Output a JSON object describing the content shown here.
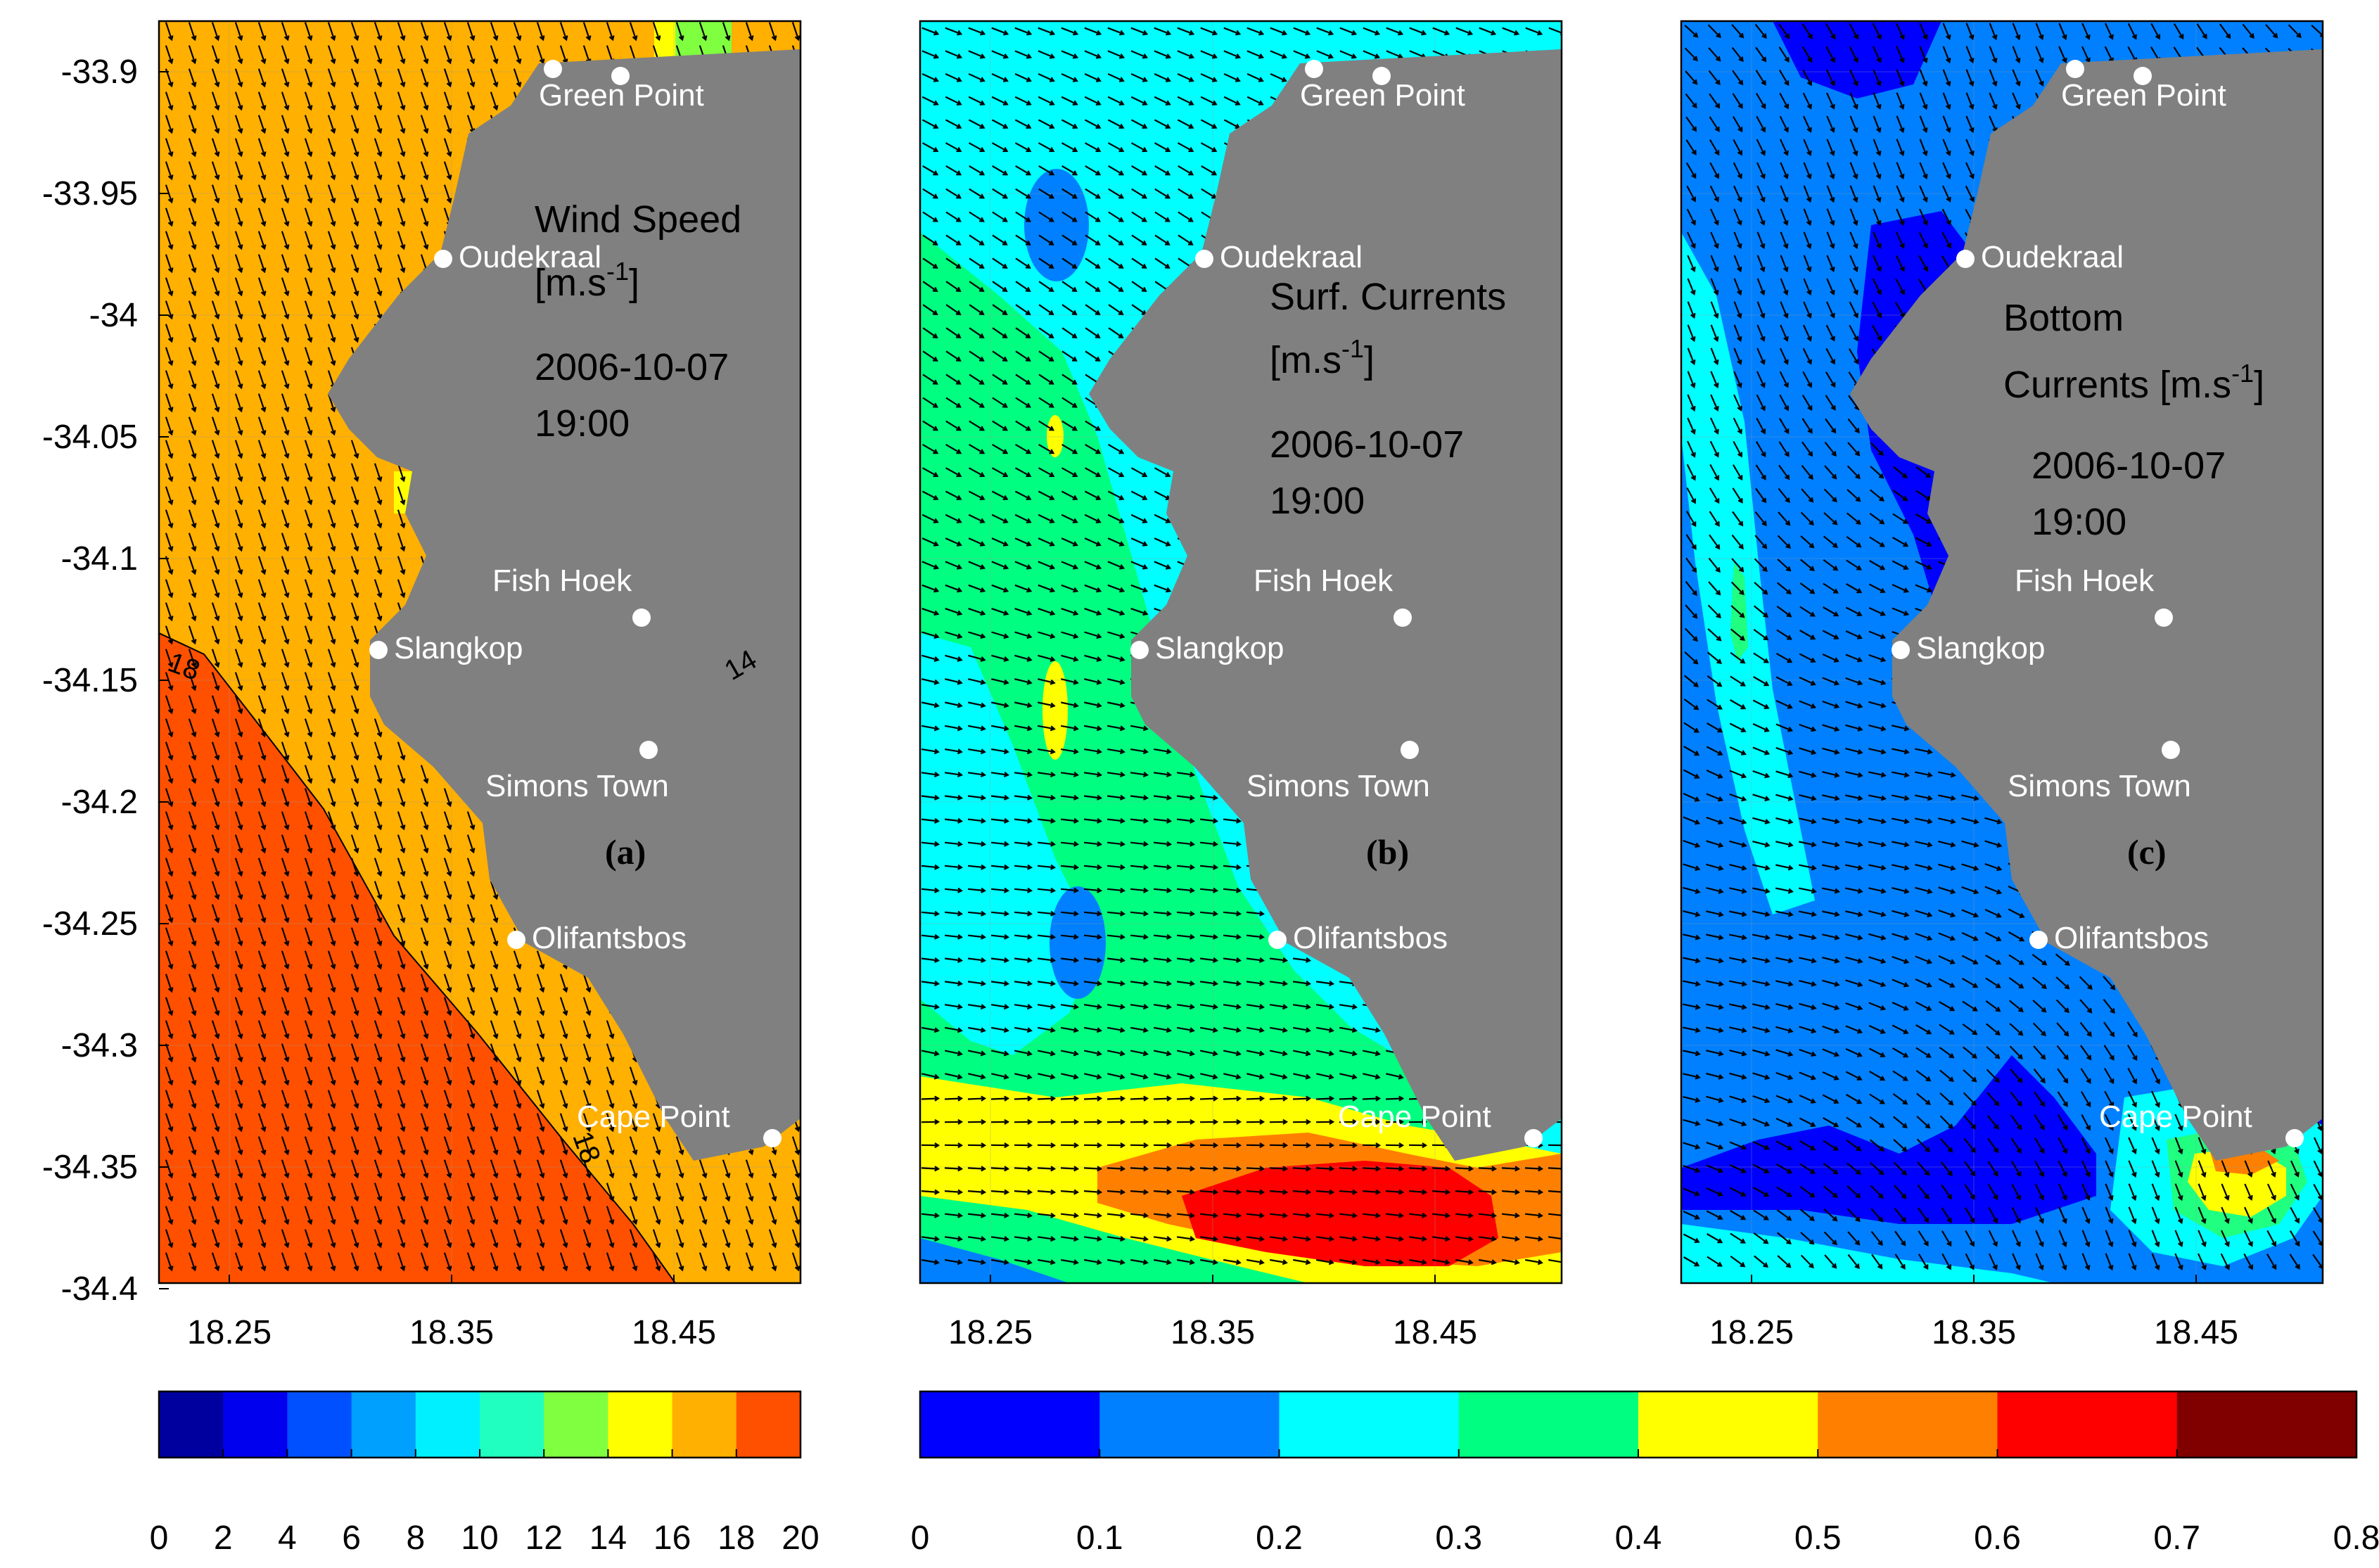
{
  "figure": {
    "y_axis_ticks": [
      "-33.9",
      "-33.95",
      "-34",
      "-34.05",
      "-34.1",
      "-34.15",
      "-34.2",
      "-34.25",
      "-34.3",
      "-34.35",
      "-34.4"
    ],
    "x_axis_ticks": [
      "18.25",
      "18.35",
      "18.45"
    ],
    "places": [
      "Green Point",
      "Oudekraal",
      "Fish Hoek",
      "Slangkop",
      "Simons Town",
      "Olifantsbos",
      "Cape Point"
    ]
  },
  "panels": [
    {
      "tag": "(a)",
      "info_lines": [
        "Wind Speed",
        "[m.s",
        "-1",
        "]",
        "2006-10-07",
        "19:00"
      ],
      "contour_labels": [
        "18",
        "14",
        "18"
      ]
    },
    {
      "tag": "(b)",
      "info_lines": [
        "Surf. Currents",
        "[m.s",
        "-1",
        "]",
        "2006-10-07",
        "19:00"
      ]
    },
    {
      "tag": "(c)",
      "info_lines": [
        "Bottom",
        "Currents [m.s",
        "-1",
        "]",
        "2006-10-07",
        "19:00"
      ]
    }
  ],
  "colorbars": [
    {
      "ticks": [
        "0",
        "2",
        "4",
        "6",
        "8",
        "10",
        "12",
        "14",
        "16",
        "18",
        "20"
      ],
      "colors": [
        "#00009e",
        "#0000ee",
        "#0050ff",
        "#00a0ff",
        "#00f0ff",
        "#20ffc0",
        "#80ff40",
        "#ffff00",
        "#ffb000",
        "#ff5000"
      ]
    },
    {
      "ticks": [
        "0",
        "0.1",
        "0.2",
        "0.3",
        "0.4",
        "0.5",
        "0.6",
        "0.7",
        "0.8"
      ],
      "colors": [
        "#0000ff",
        "#0080ff",
        "#00ffff",
        "#00ff80",
        "#ffff00",
        "#ff8000",
        "#ff0000",
        "#800000"
      ]
    }
  ],
  "colors": {
    "land": "#808080",
    "place_marker": "#ffffff"
  }
}
